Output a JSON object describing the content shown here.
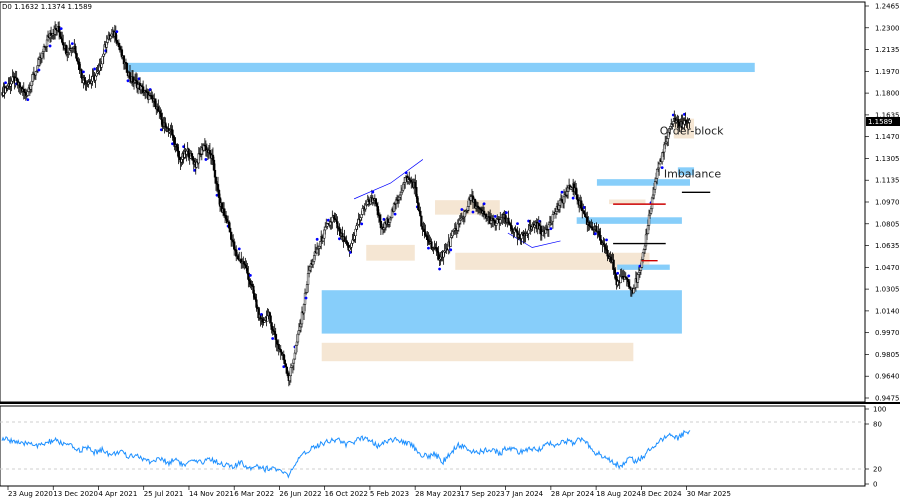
{
  "header": {
    "ohlc_text": "D0 1.1632 1.1374 1.1589"
  },
  "colors": {
    "candle": "#000000",
    "supply_zone": "#87cefa",
    "demand_zone": "#f5e6d3",
    "fractal_point": "#0000ff",
    "red_level": "#cc0000",
    "black_level": "#000000",
    "rsi_line": "#1e90ff",
    "price_marker_bg": "#000000"
  },
  "chart_data": [
    {
      "type": "candlestick",
      "ylim": [
        0.9475,
        1.2465
      ],
      "y_ticks": [
        "1.2465",
        "1.2300",
        "1.2135",
        "1.1970",
        "1.1800",
        "1.1635",
        "1.1470",
        "1.1305",
        "1.1135",
        "1.0970",
        "1.0805",
        "1.0635",
        "1.0470",
        "1.0305",
        "1.0140",
        "0.9970",
        "0.9805",
        "0.9640",
        "0.9475"
      ],
      "x_ticks": [
        "23 Aug 2020",
        "13 Dec 2020",
        "4 Apr 2021",
        "25 Jul 2021",
        "14 Nov 2021",
        "6 Mar 2022",
        "26 Jun 2022",
        "16 Oct 2022",
        "5 Feb 2023",
        "28 May 2023",
        "17 Sep 2023",
        "7 Jan 2024",
        "28 Apr 2024",
        "18 Aug 2024",
        "8 Dec 2024",
        "30 Mar 2025"
      ],
      "current_price": "1.1589",
      "close_path": [
        [
          0,
          1.18
        ],
        [
          3,
          1.19
        ],
        [
          6,
          1.178
        ],
        [
          9,
          1.2
        ],
        [
          12,
          1.225
        ],
        [
          14,
          1.228
        ],
        [
          16,
          1.212
        ],
        [
          18,
          1.215
        ],
        [
          20,
          1.19
        ],
        [
          22,
          1.188
        ],
        [
          24,
          1.195
        ],
        [
          26,
          1.22
        ],
        [
          28,
          1.225
        ],
        [
          30,
          1.205
        ],
        [
          32,
          1.19
        ],
        [
          34,
          1.185
        ],
        [
          36,
          1.178
        ],
        [
          38,
          1.172
        ],
        [
          40,
          1.155
        ],
        [
          42,
          1.15
        ],
        [
          44,
          1.128
        ],
        [
          46,
          1.135
        ],
        [
          48,
          1.125
        ],
        [
          50,
          1.14
        ],
        [
          52,
          1.13
        ],
        [
          54,
          1.095
        ],
        [
          56,
          1.08
        ],
        [
          58,
          1.055
        ],
        [
          60,
          1.05
        ],
        [
          62,
          1.03
        ],
        [
          64,
          1.005
        ],
        [
          66,
          1.01
        ],
        [
          68,
          0.99
        ],
        [
          70,
          0.975
        ],
        [
          71,
          0.962
        ],
        [
          72,
          0.975
        ],
        [
          74,
          1.005
        ],
        [
          76,
          1.045
        ],
        [
          78,
          1.06
        ],
        [
          80,
          1.075
        ],
        [
          82,
          1.085
        ],
        [
          84,
          1.07
        ],
        [
          86,
          1.06
        ],
        [
          88,
          1.08
        ],
        [
          90,
          1.095
        ],
        [
          92,
          1.1
        ],
        [
          94,
          1.075
        ],
        [
          96,
          1.085
        ],
        [
          98,
          1.1
        ],
        [
          100,
          1.115
        ],
        [
          102,
          1.11
        ],
        [
          104,
          1.075
        ],
        [
          106,
          1.065
        ],
        [
          108,
          1.055
        ],
        [
          110,
          1.06
        ],
        [
          112,
          1.075
        ],
        [
          114,
          1.085
        ],
        [
          116,
          1.1
        ],
        [
          118,
          1.09
        ],
        [
          120,
          1.085
        ],
        [
          122,
          1.08
        ],
        [
          124,
          1.085
        ],
        [
          126,
          1.078
        ],
        [
          128,
          1.068
        ],
        [
          130,
          1.075
        ],
        [
          132,
          1.08
        ],
        [
          134,
          1.072
        ],
        [
          136,
          1.085
        ],
        [
          138,
          1.095
        ],
        [
          140,
          1.105
        ],
        [
          141,
          1.11
        ],
        [
          143,
          1.095
        ],
        [
          145,
          1.08
        ],
        [
          147,
          1.075
        ],
        [
          149,
          1.06
        ],
        [
          151,
          1.05
        ],
        [
          152,
          1.035
        ],
        [
          154,
          1.04
        ],
        [
          156,
          1.03
        ],
        [
          158,
          1.045
        ],
        [
          160,
          1.085
        ],
        [
          162,
          1.12
        ],
        [
          164,
          1.14
        ],
        [
          166,
          1.16
        ],
        [
          168,
          1.155
        ],
        [
          170,
          1.1589
        ]
      ],
      "zones": [
        {
          "kind": "supply",
          "label": "",
          "x0": 31,
          "x1": 186,
          "y0": 1.1955,
          "y1": 1.2025
        },
        {
          "kind": "supply",
          "label": "",
          "x0": 79,
          "x1": 168,
          "y0": 0.9965,
          "y1": 1.0295
        },
        {
          "kind": "demand",
          "label": "",
          "x0": 79,
          "x1": 156,
          "y0": 0.9755,
          "y1": 0.9895
        },
        {
          "kind": "demand",
          "label": "",
          "x0": 90,
          "x1": 102,
          "y0": 1.052,
          "y1": 1.064
        },
        {
          "kind": "demand",
          "label": "",
          "x0": 107,
          "x1": 123,
          "y0": 1.087,
          "y1": 1.098
        },
        {
          "kind": "demand",
          "label": "",
          "x0": 112,
          "x1": 160,
          "y0": 1.045,
          "y1": 1.058
        },
        {
          "kind": "supply",
          "label": "",
          "x0": 147,
          "x1": 170,
          "y0": 1.109,
          "y1": 1.114
        },
        {
          "kind": "supply",
          "label": "",
          "x0": 142,
          "x1": 168,
          "y0": 1.08,
          "y1": 1.085
        },
        {
          "kind": "demand",
          "label": "",
          "x0": 150,
          "x1": 159,
          "y0": 1.095,
          "y1": 1.0985
        },
        {
          "kind": "supply",
          "label": "",
          "x0": 152,
          "x1": 165,
          "y0": 1.045,
          "y1": 1.049
        },
        {
          "kind": "demand",
          "label": "Order-block",
          "x0": 166,
          "x1": 171,
          "y0": 1.145,
          "y1": 1.16
        },
        {
          "kind": "supply",
          "label": "Imbalance",
          "x0": 167,
          "x1": 171,
          "y0": 1.117,
          "y1": 1.123
        }
      ],
      "levels": [
        {
          "color": "red",
          "x0": 151,
          "x1": 164,
          "y": 1.095
        },
        {
          "color": "black",
          "x0": 151,
          "x1": 164,
          "y": 1.065
        },
        {
          "color": "red",
          "x0": 158,
          "x1": 162,
          "y": 1.052
        },
        {
          "color": "black",
          "x0": 168,
          "x1": 175,
          "y": 1.104
        }
      ],
      "fractal_lines": [
        [
          [
            87,
            1.099
          ],
          [
            96,
            1.111
          ],
          [
            104,
            1.129
          ]
        ],
        [
          [
            125,
            1.073
          ],
          [
            131,
            1.062
          ],
          [
            138,
            1.067
          ]
        ]
      ]
    },
    {
      "type": "line",
      "ylim": [
        0,
        100
      ],
      "y_ticks": [
        "100",
        "80",
        "20",
        "0"
      ],
      "rsi_path": [
        [
          0,
          60
        ],
        [
          3,
          58
        ],
        [
          5,
          52
        ],
        [
          7,
          56
        ],
        [
          9,
          50
        ],
        [
          11,
          55
        ],
        [
          13,
          58
        ],
        [
          15,
          54
        ],
        [
          17,
          50
        ],
        [
          19,
          45
        ],
        [
          21,
          48
        ],
        [
          23,
          42
        ],
        [
          25,
          46
        ],
        [
          27,
          38
        ],
        [
          29,
          44
        ],
        [
          31,
          36
        ],
        [
          33,
          40
        ],
        [
          35,
          32
        ],
        [
          37,
          30
        ],
        [
          39,
          34
        ],
        [
          41,
          28
        ],
        [
          43,
          34
        ],
        [
          45,
          24
        ],
        [
          47,
          30
        ],
        [
          49,
          28
        ],
        [
          51,
          34
        ],
        [
          53,
          30
        ],
        [
          55,
          26
        ],
        [
          57,
          22
        ],
        [
          59,
          28
        ],
        [
          61,
          22
        ],
        [
          63,
          25
        ],
        [
          65,
          20
        ],
        [
          67,
          22
        ],
        [
          69,
          15
        ],
        [
          71,
          12
        ],
        [
          73,
          30
        ],
        [
          75,
          42
        ],
        [
          77,
          50
        ],
        [
          79,
          54
        ],
        [
          81,
          58
        ],
        [
          83,
          60
        ],
        [
          85,
          52
        ],
        [
          87,
          56
        ],
        [
          89,
          62
        ],
        [
          91,
          60
        ],
        [
          93,
          50
        ],
        [
          95,
          58
        ],
        [
          97,
          60
        ],
        [
          99,
          55
        ],
        [
          101,
          54
        ],
        [
          103,
          42
        ],
        [
          105,
          36
        ],
        [
          107,
          40
        ],
        [
          109,
          30
        ],
        [
          111,
          42
        ],
        [
          113,
          52
        ],
        [
          115,
          48
        ],
        [
          117,
          40
        ],
        [
          119,
          44
        ],
        [
          121,
          46
        ],
        [
          123,
          40
        ],
        [
          125,
          50
        ],
        [
          127,
          44
        ],
        [
          129,
          42
        ],
        [
          131,
          48
        ],
        [
          133,
          46
        ],
        [
          135,
          55
        ],
        [
          137,
          52
        ],
        [
          139,
          58
        ],
        [
          141,
          54
        ],
        [
          143,
          60
        ],
        [
          145,
          52
        ],
        [
          147,
          40
        ],
        [
          149,
          38
        ],
        [
          151,
          28
        ],
        [
          153,
          24
        ],
        [
          155,
          34
        ],
        [
          157,
          30
        ],
        [
          159,
          40
        ],
        [
          161,
          52
        ],
        [
          163,
          58
        ],
        [
          165,
          66
        ],
        [
          167,
          62
        ],
        [
          169,
          70
        ],
        [
          170,
          72
        ]
      ]
    }
  ]
}
